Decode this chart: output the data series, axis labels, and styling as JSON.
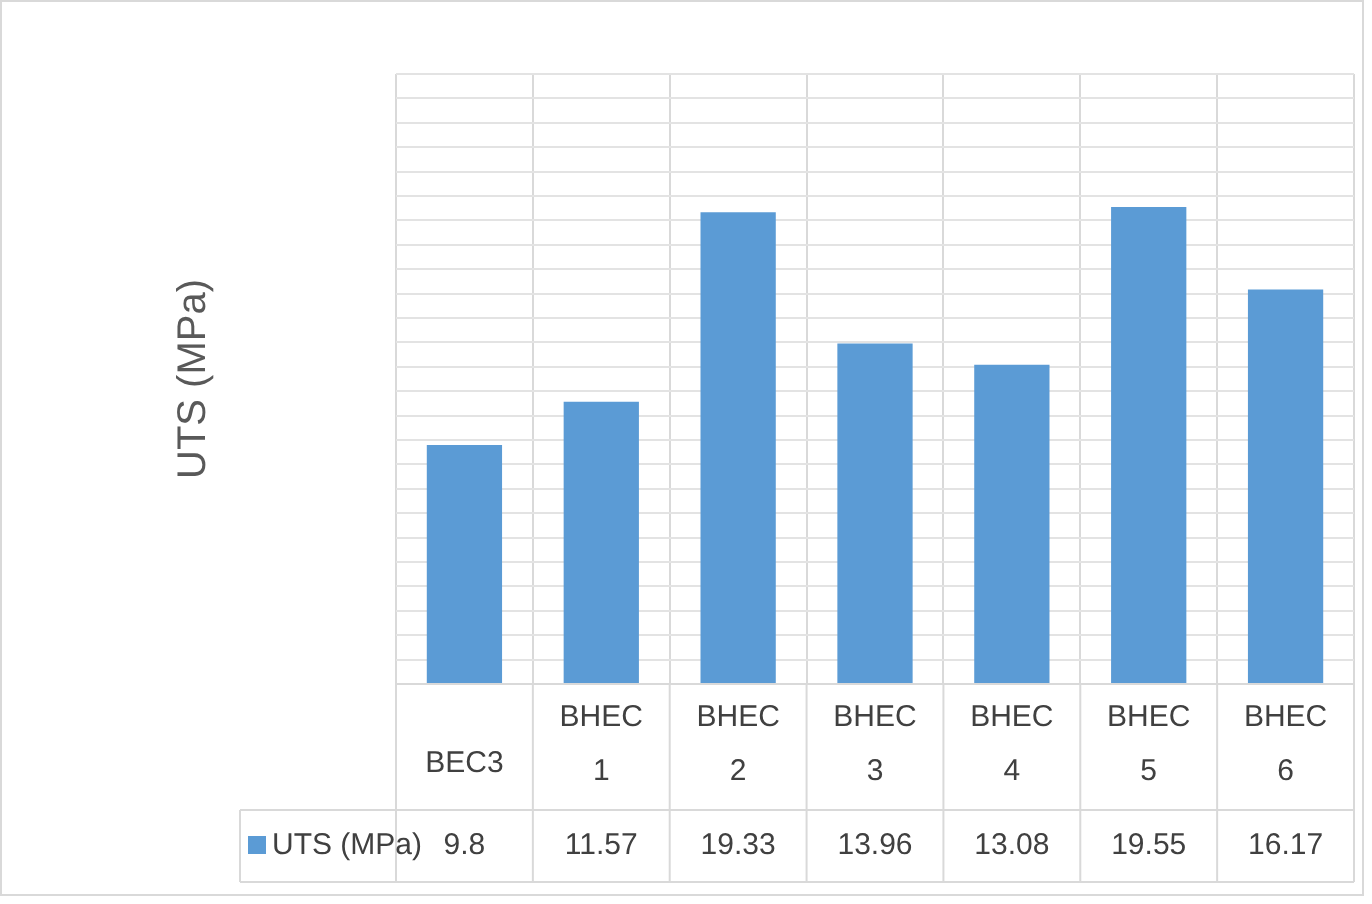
{
  "chart_data": {
    "type": "bar",
    "ylabel": "UTS (MPa)",
    "categories": [
      "BEC3",
      "BHEC 1",
      "BHEC 2",
      "BHEC 3",
      "BHEC 4",
      "BHEC 5",
      "BHEC 6"
    ],
    "series": [
      {
        "name": "UTS (MPa)",
        "color": "#5b9bd5",
        "values": [
          9.8,
          11.57,
          19.33,
          13.96,
          13.08,
          19.55,
          16.17
        ]
      }
    ],
    "ylim": [
      0,
      25
    ],
    "yticks": [
      {
        "value": 0,
        "label": null
      },
      {
        "value": 1,
        "label": null
      },
      {
        "value": 2,
        "label": null
      },
      {
        "value": 3,
        "label": null
      },
      {
        "value": 4,
        "label": null
      },
      {
        "value": 5,
        "label": null
      },
      {
        "value": 6,
        "label": null
      },
      {
        "value": 7,
        "label": null
      },
      {
        "value": 8,
        "label": null
      },
      {
        "value": 9,
        "label": null
      },
      {
        "value": 10,
        "label": null
      },
      {
        "value": 11,
        "label": null
      },
      {
        "value": 12,
        "label": null
      },
      {
        "value": 13,
        "label": null
      },
      {
        "value": 14,
        "label": null
      },
      {
        "value": 15,
        "label": null
      },
      {
        "value": 16,
        "label": null
      },
      {
        "value": 17,
        "label": null
      },
      {
        "value": 18,
        "label": null
      },
      {
        "value": 19,
        "label": null
      },
      {
        "value": 20,
        "label": null
      },
      {
        "value": 21,
        "label": null
      },
      {
        "value": 22,
        "label": null
      },
      {
        "value": 23,
        "label": null
      },
      {
        "value": 24,
        "label": null
      },
      {
        "value": 25,
        "label": null
      }
    ],
    "grid": true,
    "data_labels": true
  }
}
